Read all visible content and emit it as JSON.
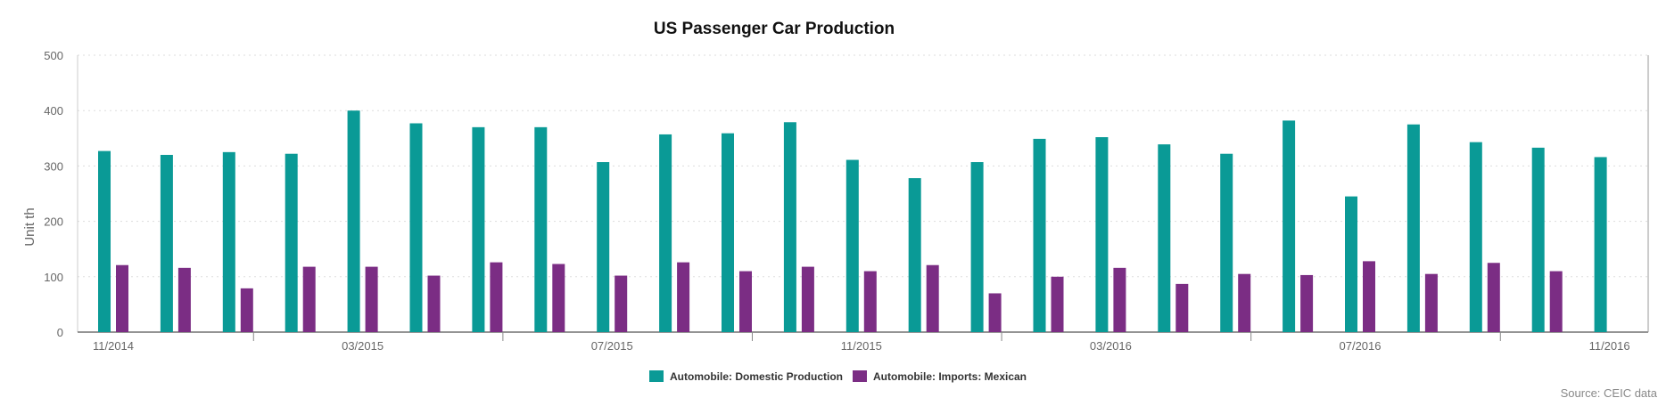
{
  "chart_data": {
    "type": "bar",
    "title": "US Passenger Car Production",
    "ylabel": "Unit th",
    "xlabel": "",
    "ylim": [
      0,
      500
    ],
    "yticks": [
      0,
      100,
      200,
      300,
      400,
      500
    ],
    "categories": [
      "11/2014",
      "12/2014",
      "01/2015",
      "02/2015",
      "03/2015",
      "04/2015",
      "05/2015",
      "06/2015",
      "07/2015",
      "08/2015",
      "09/2015",
      "10/2015",
      "11/2015",
      "12/2015",
      "01/2016",
      "02/2016",
      "03/2016",
      "04/2016",
      "05/2016",
      "06/2016",
      "07/2016",
      "08/2016",
      "09/2016",
      "10/2016",
      "11/2016"
    ],
    "xtick_labels": [
      {
        "index": 0,
        "label": "11/2014"
      },
      {
        "index": 4,
        "label": "03/2015"
      },
      {
        "index": 8,
        "label": "07/2015"
      },
      {
        "index": 12,
        "label": "11/2015"
      },
      {
        "index": 16,
        "label": "03/2016"
      },
      {
        "index": 20,
        "label": "07/2016"
      },
      {
        "index": 24,
        "label": "11/2016"
      }
    ],
    "series": [
      {
        "name": "Automobile: Domestic Production",
        "color": "#0a9a96",
        "values": [
          327,
          320,
          325,
          322,
          400,
          377,
          370,
          370,
          307,
          357,
          359,
          379,
          311,
          278,
          307,
          349,
          352,
          339,
          322,
          382,
          245,
          375,
          343,
          333,
          316
        ]
      },
      {
        "name": "Automobile: Imports: Mexican",
        "color": "#7b2d84",
        "values": [
          121,
          116,
          79,
          118,
          118,
          102,
          126,
          123,
          102,
          126,
          110,
          118,
          110,
          121,
          70,
          100,
          116,
          87,
          105,
          103,
          128,
          105,
          125,
          110,
          null
        ]
      }
    ],
    "grid": true,
    "legend_position": "bottom-center",
    "source": "Source: CEIC data"
  }
}
